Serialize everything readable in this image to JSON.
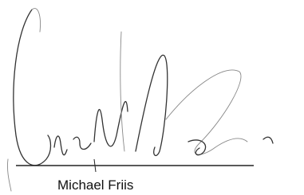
{
  "signature": {
    "name": "Michael Friis"
  }
}
